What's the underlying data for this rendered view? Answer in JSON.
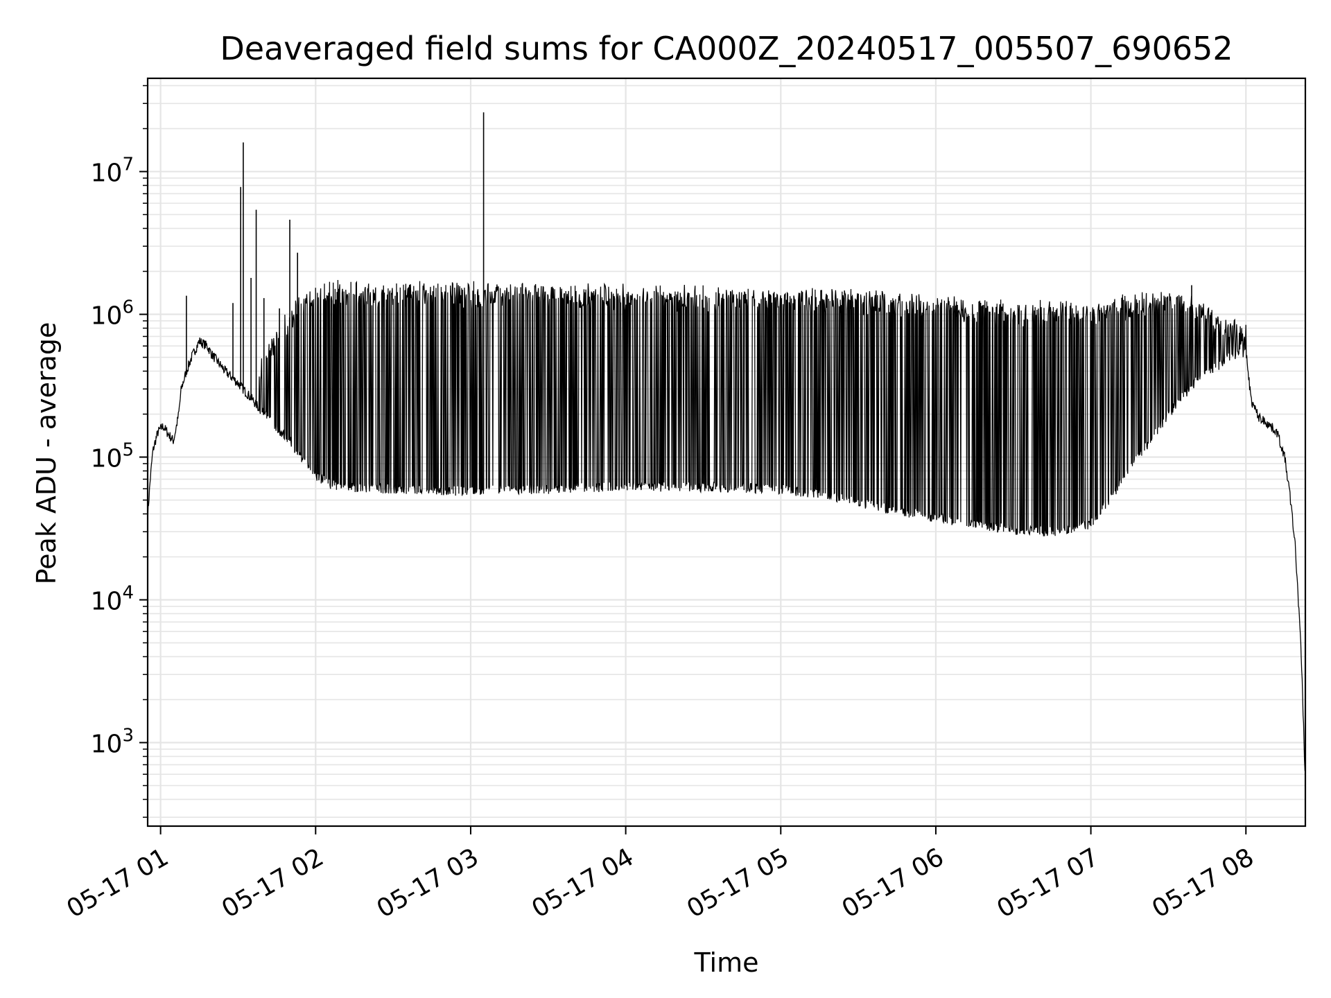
{
  "chart_data": {
    "type": "line",
    "title": "Deaveraged field sums for CA000Z_20240517_005507_690652",
    "xlabel": "Time",
    "ylabel": "Peak ADU - average",
    "y_scale": "log",
    "ylim": [
      260,
      45000000
    ],
    "xlim": [
      "2024-05-17 00:55",
      "2024-05-17 08:23"
    ],
    "grid": true,
    "grid_minor": true,
    "line_color": "#000000",
    "grid_color": "#e5e5e5",
    "x_ticks": [
      {
        "t": "2024-05-17 01:00",
        "label": "05-17 01"
      },
      {
        "t": "2024-05-17 02:00",
        "label": "05-17 02"
      },
      {
        "t": "2024-05-17 03:00",
        "label": "05-17 03"
      },
      {
        "t": "2024-05-17 04:00",
        "label": "05-17 04"
      },
      {
        "t": "2024-05-17 05:00",
        "label": "05-17 05"
      },
      {
        "t": "2024-05-17 06:00",
        "label": "05-17 06"
      },
      {
        "t": "2024-05-17 07:00",
        "label": "05-17 07"
      },
      {
        "t": "2024-05-17 08:00",
        "label": "05-17 08"
      }
    ],
    "y_ticks": [
      {
        "value": 1000,
        "base": "10",
        "exp": "3"
      },
      {
        "value": 10000,
        "base": "10",
        "exp": "4"
      },
      {
        "value": 100000,
        "base": "10",
        "exp": "5"
      },
      {
        "value": 1000000,
        "base": "10",
        "exp": "6"
      },
      {
        "value": 10000000,
        "base": "10",
        "exp": "7"
      }
    ],
    "series": [
      {
        "points": [
          [
            "2024-05-17 00:55",
            38000
          ],
          [
            "2024-05-17 00:56",
            70000
          ],
          [
            "2024-05-17 00:57",
            110000
          ],
          [
            "2024-05-17 00:58",
            130000
          ],
          [
            "2024-05-17 00:59",
            150000
          ],
          [
            "2024-05-17 01:01",
            165000
          ],
          [
            "2024-05-17 01:03",
            145000
          ],
          [
            "2024-05-17 01:05",
            130000
          ],
          [
            "2024-05-17 01:06",
            160000
          ],
          [
            "2024-05-17 01:07",
            200000
          ],
          [
            "2024-05-17 01:08",
            300000
          ],
          [
            "2024-05-17 01:10",
            400000
          ],
          [
            "2024-05-17 01:12",
            500000
          ],
          [
            "2024-05-17 01:15",
            650000
          ],
          [
            "2024-05-17 01:18",
            600000
          ],
          [
            "2024-05-17 01:20",
            520000
          ],
          [
            "2024-05-17 01:25",
            400000
          ],
          [
            "2024-05-17 01:30",
            330000
          ],
          [
            "2024-05-17 01:35",
            260000
          ],
          [
            "2024-05-17 01:40",
            200000
          ],
          [
            "2024-05-17 01:45",
            160000
          ],
          [
            "2024-05-17 01:50",
            130000
          ],
          [
            "2024-05-17 01:55",
            95000
          ],
          [
            "2024-05-17 02:00",
            75000
          ],
          [
            "2024-05-17 02:05",
            65000
          ],
          [
            "2024-05-17 02:10",
            62000
          ],
          [
            "2024-05-17 02:30",
            60000
          ],
          [
            "2024-05-17 03:00",
            58000
          ],
          [
            "2024-05-17 03:30",
            60000
          ],
          [
            "2024-05-17 04:00",
            62000
          ],
          [
            "2024-05-17 04:30",
            62000
          ],
          [
            "2024-05-17 05:00",
            60000
          ],
          [
            "2024-05-17 05:15",
            55000
          ],
          [
            "2024-05-17 05:30",
            48000
          ],
          [
            "2024-05-17 05:45",
            42000
          ],
          [
            "2024-05-17 06:00",
            38000
          ],
          [
            "2024-05-17 06:15",
            34000
          ],
          [
            "2024-05-17 06:30",
            31000
          ],
          [
            "2024-05-17 06:45",
            30000
          ],
          [
            "2024-05-17 07:00",
            34000
          ],
          [
            "2024-05-17 07:10",
            60000
          ],
          [
            "2024-05-17 07:20",
            110000
          ],
          [
            "2024-05-17 07:30",
            200000
          ],
          [
            "2024-05-17 07:40",
            330000
          ],
          [
            "2024-05-17 07:50",
            450000
          ],
          [
            "2024-05-17 07:55",
            520000
          ],
          [
            "2024-05-17 08:00",
            550000
          ],
          [
            "2024-05-17 08:01",
            380000
          ],
          [
            "2024-05-17 08:02",
            250000
          ],
          [
            "2024-05-17 08:05",
            190000
          ],
          [
            "2024-05-17 08:08",
            175000
          ],
          [
            "2024-05-17 08:12",
            150000
          ],
          [
            "2024-05-17 08:15",
            100000
          ],
          [
            "2024-05-17 08:17",
            55000
          ],
          [
            "2024-05-17 08:19",
            25000
          ],
          [
            "2024-05-17 08:21",
            6000
          ],
          [
            "2024-05-17 08:22",
            2000
          ],
          [
            "2024-05-17 08:23",
            480
          ]
        ],
        "band": [
          [
            "2024-05-17 01:38",
            400000
          ],
          [
            "2024-05-17 01:45",
            700000
          ],
          [
            "2024-05-17 01:52",
            1100000
          ],
          [
            "2024-05-17 02:00",
            1500000
          ],
          [
            "2024-05-17 03:00",
            1450000
          ],
          [
            "2024-05-17 04:00",
            1400000
          ],
          [
            "2024-05-17 05:00",
            1350000
          ],
          [
            "2024-05-17 05:30",
            1300000
          ],
          [
            "2024-05-17 06:00",
            1200000
          ],
          [
            "2024-05-17 06:30",
            1050000
          ],
          [
            "2024-05-17 07:00",
            1100000
          ],
          [
            "2024-05-17 07:20",
            1250000
          ],
          [
            "2024-05-17 07:35",
            1300000
          ],
          [
            "2024-05-17 07:50",
            900000
          ],
          [
            "2024-05-17 08:00",
            750000
          ]
        ],
        "spikes": [
          [
            "2024-05-17 01:10",
            1350000
          ],
          [
            "2024-05-17 01:28",
            1200000
          ],
          [
            "2024-05-17 01:31",
            7800000
          ],
          [
            "2024-05-17 01:32",
            16000000
          ],
          [
            "2024-05-17 01:35",
            1800000
          ],
          [
            "2024-05-17 01:37",
            5400000
          ],
          [
            "2024-05-17 01:40",
            1300000
          ],
          [
            "2024-05-17 01:46",
            1100000
          ],
          [
            "2024-05-17 01:50",
            4600000
          ],
          [
            "2024-05-17 01:53",
            2700000
          ],
          [
            "2024-05-17 03:05",
            26000000
          ],
          [
            "2024-05-17 07:39",
            1600000
          ]
        ]
      }
    ]
  }
}
